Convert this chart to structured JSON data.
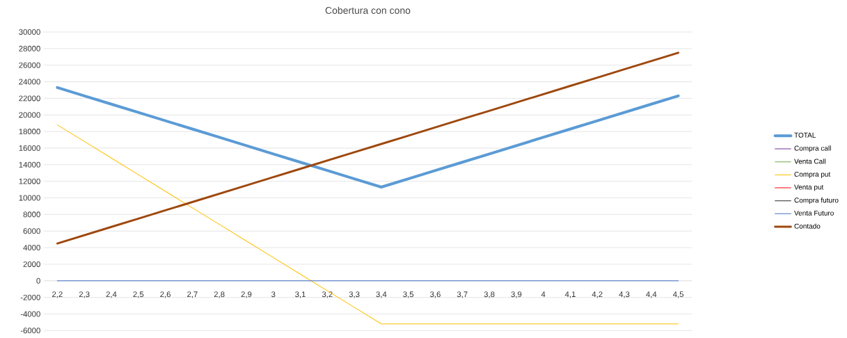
{
  "chart_data": {
    "type": "line",
    "title": "Cobertura con cono",
    "categories": [
      "2,2",
      "2,3",
      "2,4",
      "2,5",
      "2,6",
      "2,7",
      "2,8",
      "2,9",
      "3",
      "3,1",
      "3,2",
      "3,3",
      "3,4",
      "3,5",
      "3,6",
      "3,7",
      "3,8",
      "3,9",
      "4",
      "4,1",
      "4,2",
      "4,3",
      "4,4",
      "4,5"
    ],
    "series": [
      {
        "name": "TOTAL",
        "color": "#5b9bd5",
        "values": [
          23300,
          22300,
          21300,
          20300,
          19300,
          18300,
          17300,
          16300,
          15300,
          14300,
          13300,
          12300,
          11300,
          12300,
          13300,
          14300,
          15300,
          16300,
          17300,
          18300,
          19300,
          20300,
          21300,
          22300
        ]
      },
      {
        "name": "Compra call",
        "color": "#7030a0",
        "values": [
          null,
          null,
          null,
          null,
          null,
          null,
          null,
          null,
          null,
          null,
          null,
          null,
          null,
          null,
          null,
          null,
          null,
          null,
          null,
          null,
          null,
          null,
          null,
          null
        ]
      },
      {
        "name": "Venta Call",
        "color": "#70ad47",
        "values": [
          null,
          null,
          null,
          null,
          null,
          null,
          null,
          null,
          null,
          null,
          null,
          null,
          null,
          null,
          null,
          null,
          null,
          null,
          null,
          null,
          null,
          null,
          null,
          null
        ]
      },
      {
        "name": "Compra put",
        "color": "#ffc000",
        "values": [
          18800,
          16800,
          14800,
          12800,
          10800,
          8800,
          6800,
          4800,
          2800,
          800,
          -1200,
          -3200,
          -5200,
          -5200,
          -5200,
          -5200,
          -5200,
          -5200,
          -5200,
          -5200,
          -5200,
          -5200,
          -5200,
          -5200
        ]
      },
      {
        "name": "Venta put",
        "color": "#ff0000",
        "values": [
          null,
          null,
          null,
          null,
          null,
          null,
          null,
          null,
          null,
          null,
          null,
          null,
          null,
          null,
          null,
          null,
          null,
          null,
          null,
          null,
          null,
          null,
          null,
          null
        ]
      },
      {
        "name": "Compra futuro",
        "color": "#262626",
        "values": [
          null,
          null,
          null,
          null,
          null,
          null,
          null,
          null,
          null,
          null,
          null,
          null,
          null,
          null,
          null,
          null,
          null,
          null,
          null,
          null,
          null,
          null,
          null,
          null
        ]
      },
      {
        "name": "Venta Futuro",
        "color": "#4472c4",
        "values": [
          0,
          0,
          0,
          0,
          0,
          0,
          0,
          0,
          0,
          0,
          0,
          0,
          0,
          0,
          0,
          0,
          0,
          0,
          0,
          0,
          0,
          0,
          0,
          0
        ]
      },
      {
        "name": "Contado",
        "color": "#9e480e",
        "values": [
          4500,
          5500,
          6500,
          7500,
          8500,
          9500,
          10500,
          11500,
          12500,
          13500,
          14500,
          15500,
          16500,
          17500,
          18500,
          19500,
          20500,
          21500,
          22500,
          23500,
          24500,
          25500,
          26500,
          27500
        ]
      }
    ],
    "ylim": [
      -6000,
      30000
    ],
    "yticks": [
      -6000,
      -4000,
      -2000,
      0,
      2000,
      4000,
      6000,
      8000,
      10000,
      12000,
      14000,
      16000,
      18000,
      20000,
      22000,
      24000,
      26000,
      28000,
      30000
    ],
    "grid": "y",
    "legend": "right",
    "marker": "none",
    "line_style": "solid"
  }
}
